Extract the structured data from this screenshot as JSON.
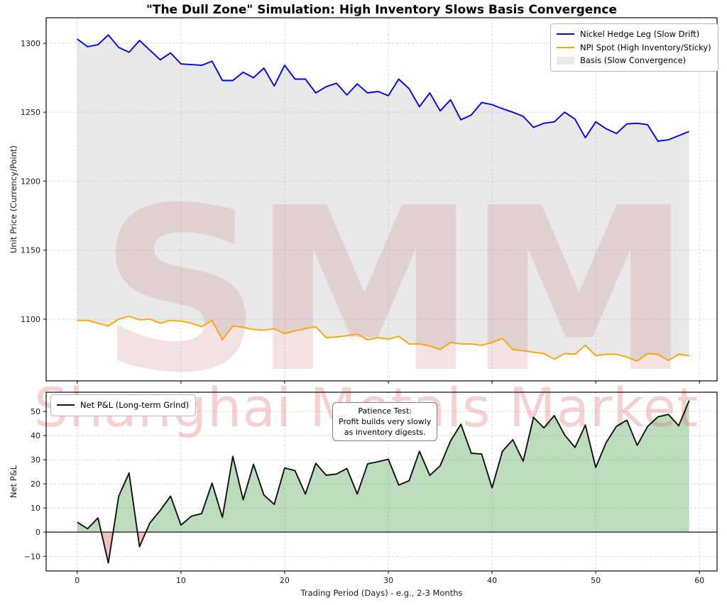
{
  "title": "\"The Dull Zone\" Simulation: High Inventory Slows Basis Convergence",
  "watermark": {
    "logo": "SMM",
    "subtitle": "Shanghai Metals Market"
  },
  "colors": {
    "hedge_line": "#0000ee",
    "spot_line": "#ffa500",
    "basis_fill": "#bdbdbd",
    "pnl_line": "#111111",
    "pnl_fill_positive": "#5ba85b",
    "pnl_fill_negative": "#d9685c",
    "grid": "#d2d2d2",
    "spine": "#1a1a1a",
    "watermark_logo": "#c88080",
    "watermark_text": "#e05050",
    "legend_patch": "#e9e9e9"
  },
  "top_chart": {
    "ylabel": "Unit Price (Currency/Point)",
    "legend": {
      "items": [
        {
          "label": "Nickel Hedge Leg (Slow Drift)",
          "color": "#0000ee",
          "type": "line"
        },
        {
          "label": "NPI Spot (High Inventory/Sticky)",
          "color": "#ffa500",
          "type": "line"
        },
        {
          "label": "Basis (Slow Convergence)",
          "color": "#e9e9e9",
          "type": "patch"
        }
      ]
    }
  },
  "bottom_chart": {
    "ylabel": "Net P&L",
    "xlabel": "Trading Period (Days) - e.g., 2-3 Months",
    "legend": {
      "items": [
        {
          "label": "Net P&L (Long-term Grind)",
          "color": "#111111",
          "type": "line"
        }
      ]
    },
    "annotation": {
      "line1": "Patience Test:",
      "line2": "Profit builds very slowly",
      "line3": "as inventory digests."
    }
  },
  "chart_data": [
    {
      "type": "line",
      "panel": "top",
      "x_unit": "day",
      "x_range": [
        0,
        59
      ],
      "xlim": [
        -3,
        61.7
      ],
      "ylim": [
        1055.2,
        1318.5
      ],
      "grid": true,
      "legend_position": "upper right",
      "xticks": {
        "values": [
          0,
          10,
          20,
          30,
          40,
          50,
          60
        ],
        "labels": [],
        "show_labels": false
      },
      "yticks": {
        "values": [
          1100,
          1150,
          1200,
          1250,
          1300
        ],
        "labels": [
          "1100",
          "1150",
          "1200",
          "1250",
          "1300"
        ]
      },
      "series": [
        {
          "name": "Nickel Hedge Leg (Slow Drift)",
          "color": "#0000ee",
          "values": [
            1303,
            1297.5,
            1299,
            1306,
            1297,
            1293.5,
            1302,
            1295,
            1288,
            1293,
            1285,
            1284.5,
            1284,
            1287,
            1273,
            1273,
            1279,
            1275,
            1282,
            1269,
            1284,
            1274,
            1274,
            1264,
            1268.5,
            1271,
            1262.5,
            1270.5,
            1264,
            1265,
            1262,
            1274,
            1267,
            1254,
            1264,
            1251,
            1259,
            1244.5,
            1248,
            1257,
            1255.5,
            1252.5,
            1250,
            1247,
            1239,
            1242,
            1243,
            1250,
            1245,
            1231.5,
            1243,
            1238,
            1234.5,
            1241.5,
            1242,
            1241,
            1229,
            1230,
            1233,
            1236
          ]
        },
        {
          "name": "NPI Spot (High Inventory/Sticky)",
          "color": "#ffa500",
          "values": [
            1099,
            1099,
            1097,
            1095,
            1100,
            1102,
            1099.5,
            1100,
            1097,
            1099,
            1098.5,
            1097,
            1094.5,
            1099,
            1085,
            1095,
            1094,
            1092.5,
            1092,
            1093,
            1089.5,
            1091.5,
            1093,
            1094.5,
            1086.5,
            1087,
            1088,
            1089,
            1085,
            1086.5,
            1085.5,
            1087.5,
            1082,
            1082,
            1080.5,
            1078,
            1083,
            1082,
            1082,
            1081,
            1083,
            1086,
            1078,
            1077,
            1076,
            1075,
            1071,
            1075,
            1074.5,
            1081,
            1073.5,
            1074.5,
            1074.5,
            1072.5,
            1069.5,
            1075,
            1074.5,
            1070,
            1074.5,
            1073.5
          ]
        }
      ],
      "fill_between": {
        "name": "Basis (Slow Convergence)",
        "upper": "Nickel Hedge Leg (Slow Drift)",
        "lower": "NPI Spot (High Inventory/Sticky)",
        "color": "#bdbdbd",
        "opacity": 0.35
      }
    },
    {
      "type": "area",
      "panel": "bottom",
      "x_unit": "day",
      "x_range": [
        0,
        59
      ],
      "xlim": [
        -3,
        61.7
      ],
      "ylim": [
        -16.1,
        58
      ],
      "grid": true,
      "legend_position": "upper left",
      "zero_line": true,
      "xticks": {
        "values": [
          0,
          10,
          20,
          30,
          40,
          50,
          60
        ],
        "labels": [
          "0",
          "10",
          "20",
          "30",
          "40",
          "50",
          "60"
        ],
        "show_labels": true
      },
      "yticks": {
        "values": [
          -10,
          0,
          10,
          20,
          30,
          40,
          50
        ],
        "labels": [
          "−10",
          "0",
          "10",
          "20",
          "30",
          "40",
          "50"
        ]
      },
      "series": [
        {
          "name": "Net P&L (Long-term Grind)",
          "color": "#111111",
          "values": [
            4.1,
            1.4,
            5.9,
            -12.8,
            14.9,
            24.5,
            -6,
            3.8,
            9,
            14.9,
            2.9,
            6.6,
            7.7,
            20.3,
            6.1,
            31.4,
            13.4,
            28.1,
            15.4,
            11.5,
            26.6,
            25.5,
            15.8,
            28.5,
            23.6,
            24.1,
            26.4,
            15.8,
            28.3,
            29.2,
            30.2,
            19.5,
            21.3,
            33.5,
            23.5,
            27.5,
            37.8,
            44.7,
            32.7,
            32.4,
            18.4,
            33.5,
            38.3,
            29.4,
            47.6,
            43.2,
            48.3,
            40.3,
            35.1,
            44.4,
            26.8,
            37.1,
            43.9,
            46.4,
            36,
            43.8,
            47.8,
            48.8,
            44.1,
            54.5
          ]
        }
      ],
      "fill_positive_color": "#5ba85b",
      "fill_negative_color": "#d9685c"
    }
  ]
}
